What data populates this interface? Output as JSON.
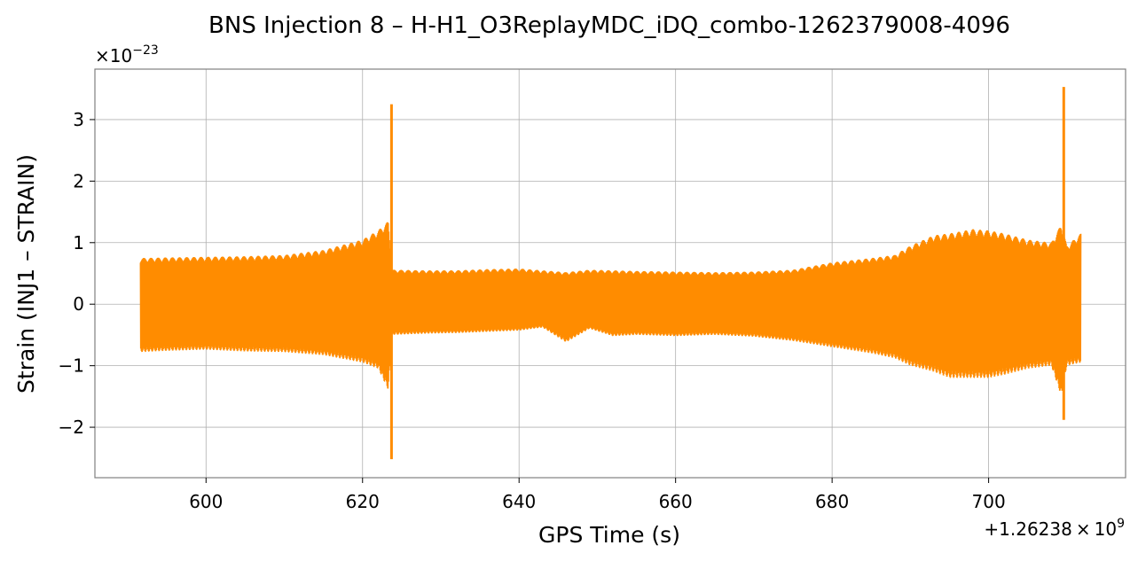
{
  "chart_data": {
    "type": "line",
    "title": "BNS Injection 8 – H-H1_O3ReplayMDC_iDQ_combo-1262379008-4096",
    "xlabel": "GPS Time (s)",
    "ylabel": "Strain (INJ1 – STRAIN)",
    "x_offset_text": {
      "prefix": "+1.26238",
      "times": "×",
      "base": "10",
      "exp": "9"
    },
    "y_scale_text": {
      "times": "×",
      "base": "10",
      "exp": "−23"
    },
    "xlim": [
      585.8,
      717.5
    ],
    "ylim": [
      -2.82,
      3.82
    ],
    "x_ticks": [
      {
        "value": 600,
        "label": "600"
      },
      {
        "value": 620,
        "label": "620"
      },
      {
        "value": 640,
        "label": "640"
      },
      {
        "value": 660,
        "label": "660"
      },
      {
        "value": 680,
        "label": "680"
      },
      {
        "value": 700,
        "label": "700"
      }
    ],
    "y_ticks": [
      {
        "value": -2,
        "label": "−2"
      },
      {
        "value": -1,
        "label": "−1"
      },
      {
        "value": 0,
        "label": "0"
      },
      {
        "value": 1,
        "label": "1"
      },
      {
        "value": 2,
        "label": "2"
      },
      {
        "value": 3,
        "label": "3"
      }
    ],
    "grid": true,
    "legend": "none",
    "series": [
      {
        "color": "#ff8c00",
        "x_range": [
          591.6,
          711.8
        ],
        "envelope": [
          [
            591.6,
            0.75,
            -0.78
          ],
          [
            595,
            0.76,
            -0.76
          ],
          [
            600,
            0.77,
            -0.74
          ],
          [
            605,
            0.78,
            -0.77
          ],
          [
            610,
            0.8,
            -0.78
          ],
          [
            615,
            0.88,
            -0.83
          ],
          [
            620,
            1.05,
            -0.95
          ],
          [
            622,
            1.2,
            -1.05
          ],
          [
            623.3,
            1.35,
            -1.4
          ],
          [
            623.8,
            0.56,
            -0.5
          ],
          [
            628,
            0.55,
            -0.48
          ],
          [
            632,
            0.55,
            -0.47
          ],
          [
            636,
            0.57,
            -0.45
          ],
          [
            640,
            0.58,
            -0.43
          ],
          [
            643,
            0.55,
            -0.38
          ],
          [
            646,
            0.52,
            -0.62
          ],
          [
            649,
            0.56,
            -0.4
          ],
          [
            652,
            0.55,
            -0.52
          ],
          [
            655,
            0.54,
            -0.5
          ],
          [
            660,
            0.53,
            -0.52
          ],
          [
            665,
            0.52,
            -0.5
          ],
          [
            670,
            0.53,
            -0.53
          ],
          [
            675,
            0.56,
            -0.6
          ],
          [
            680,
            0.68,
            -0.7
          ],
          [
            685,
            0.75,
            -0.8
          ],
          [
            688,
            0.8,
            -0.88
          ],
          [
            690,
            0.95,
            -1.0
          ],
          [
            693,
            1.12,
            -1.1
          ],
          [
            695,
            1.15,
            -1.2
          ],
          [
            698,
            1.22,
            -1.2
          ],
          [
            700,
            1.2,
            -1.2
          ],
          [
            702,
            1.15,
            -1.15
          ],
          [
            705,
            1.05,
            -1.05
          ],
          [
            708,
            1.0,
            -1.0
          ],
          [
            709.3,
            1.3,
            -1.5
          ],
          [
            710,
            0.95,
            -1.0
          ],
          [
            711.8,
            1.15,
            -0.95
          ]
        ],
        "spikes": [
          {
            "x": 623.7,
            "max": 3.25,
            "min": -2.52
          },
          {
            "x": 709.6,
            "max": 3.53,
            "min": -1.88
          }
        ]
      }
    ]
  }
}
